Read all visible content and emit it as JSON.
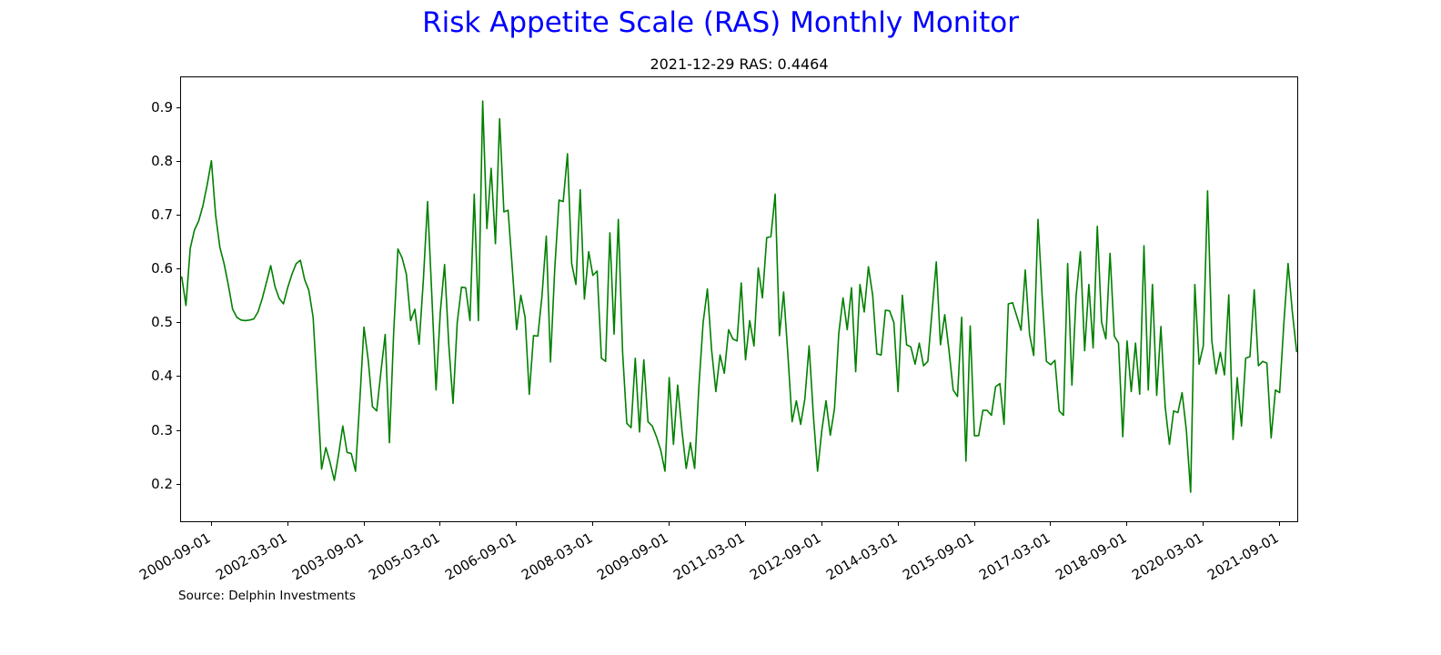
{
  "header": {
    "title": "Risk Appetite Scale (RAS) Monthly Monitor",
    "subtitle": "2021-12-29 RAS: 0.4464"
  },
  "footer": {
    "source": "Source: Delphin Investments"
  },
  "colors": {
    "title": "#0000ff",
    "line": "#008000",
    "axis": "#000000",
    "background": "#ffffff"
  },
  "chart_data": {
    "type": "line",
    "title": "Risk Appetite Scale (RAS) Monthly Monitor",
    "subtitle": "2021-12-29 RAS: 0.4464",
    "source": "Source: Delphin Investments",
    "grid": false,
    "legend": "none",
    "xlabel": "",
    "ylabel": "",
    "x_unit": "month-end",
    "x_start": "2000-01",
    "x_end": "2021-12",
    "x_tick_rotation_deg": 30,
    "ylim": [
      0.131,
      0.956
    ],
    "yticks": [
      0.2,
      0.3,
      0.4,
      0.5,
      0.6,
      0.7,
      0.8,
      0.9
    ],
    "xticks": [
      "2000-09-01",
      "2002-03-01",
      "2003-09-01",
      "2005-03-01",
      "2006-09-01",
      "2008-03-01",
      "2009-09-01",
      "2011-03-01",
      "2012-09-01",
      "2014-03-01",
      "2015-09-01",
      "2017-03-01",
      "2018-09-01",
      "2020-03-01",
      "2021-09-01"
    ],
    "last_point": {
      "date": "2021-12-29",
      "value": 0.4464
    },
    "series": [
      {
        "name": "RAS",
        "color": "#008000",
        "monthly_values": {
          "2000": [
            0.585,
            0.532,
            0.638,
            0.672,
            0.689,
            0.717,
            0.756,
            0.801,
            0.7,
            0.64,
            0.61,
            0.57
          ],
          "2001": [
            0.525,
            0.51,
            0.505,
            0.504,
            0.505,
            0.507,
            0.52,
            0.545,
            0.575,
            0.606,
            0.567,
            0.545
          ],
          "2002": [
            0.535,
            0.565,
            0.59,
            0.61,
            0.616,
            0.58,
            0.56,
            0.51,
            0.37,
            0.228,
            0.268,
            0.24
          ],
          "2003": [
            0.207,
            0.255,
            0.308,
            0.259,
            0.257,
            0.224,
            0.355,
            0.492,
            0.43,
            0.344,
            0.336,
            0.41
          ],
          "2004": [
            0.478,
            0.277,
            0.48,
            0.637,
            0.62,
            0.59,
            0.504,
            0.525,
            0.46,
            0.58,
            0.725,
            0.55
          ],
          "2005": [
            0.375,
            0.52,
            0.608,
            0.46,
            0.35,
            0.5,
            0.566,
            0.565,
            0.504,
            0.739,
            0.504,
            0.912
          ],
          "2006": [
            0.675,
            0.787,
            0.647,
            0.879,
            0.706,
            0.709,
            0.6,
            0.487,
            0.551,
            0.51,
            0.367,
            0.476
          ],
          "2007": [
            0.475,
            0.55,
            0.661,
            0.427,
            0.6,
            0.728,
            0.725,
            0.814,
            0.61,
            0.571,
            0.747,
            0.544
          ],
          "2008": [
            0.632,
            0.588,
            0.596,
            0.434,
            0.428,
            0.667,
            0.479,
            0.692,
            0.445,
            0.313,
            0.305,
            0.434
          ],
          "2009": [
            0.297,
            0.431,
            0.316,
            0.308,
            0.288,
            0.263,
            0.224,
            0.398,
            0.274,
            0.384,
            0.3,
            0.229
          ],
          "2010": [
            0.277,
            0.229,
            0.38,
            0.5,
            0.563,
            0.45,
            0.372,
            0.44,
            0.406,
            0.487,
            0.47,
            0.466
          ],
          "2011": [
            0.574,
            0.431,
            0.504,
            0.457,
            0.602,
            0.546,
            0.658,
            0.66,
            0.739,
            0.476,
            0.557,
            0.44
          ],
          "2012": [
            0.316,
            0.355,
            0.311,
            0.358,
            0.457,
            0.33,
            0.224,
            0.3,
            0.355,
            0.291,
            0.34,
            0.48
          ],
          "2013": [
            0.546,
            0.487,
            0.565,
            0.409,
            0.571,
            0.52,
            0.604,
            0.551,
            0.442,
            0.44,
            0.523,
            0.522
          ],
          "2014": [
            0.5,
            0.372,
            0.551,
            0.459,
            0.455,
            0.423,
            0.462,
            0.42,
            0.428,
            0.52,
            0.613,
            0.459
          ],
          "2015": [
            0.515,
            0.448,
            0.375,
            0.363,
            0.51,
            0.243,
            0.494,
            0.29,
            0.29,
            0.337,
            0.337,
            0.328
          ],
          "2016": [
            0.381,
            0.387,
            0.311,
            0.535,
            0.537,
            0.512,
            0.486,
            0.598,
            0.478,
            0.439,
            0.692,
            0.546
          ],
          "2017": [
            0.428,
            0.422,
            0.43,
            0.336,
            0.328,
            0.61,
            0.384,
            0.55,
            0.632,
            0.448,
            0.571,
            0.453
          ],
          "2018": [
            0.679,
            0.501,
            0.47,
            0.629,
            0.475,
            0.462,
            0.288,
            0.466,
            0.372,
            0.462,
            0.367,
            0.643
          ],
          "2019": [
            0.375,
            0.571,
            0.365,
            0.493,
            0.344,
            0.274,
            0.336,
            0.333,
            0.37,
            0.3,
            0.185,
            0.571
          ],
          "2020": [
            0.423,
            0.457,
            0.745,
            0.466,
            0.405,
            0.445,
            0.403,
            0.552,
            0.283,
            0.398,
            0.308,
            0.434
          ],
          "2021": [
            0.437,
            0.561,
            0.42,
            0.428,
            0.425,
            0.286,
            0.375,
            0.37,
            0.5,
            0.61,
            0.52,
            0.4464
          ]
        }
      }
    ]
  }
}
